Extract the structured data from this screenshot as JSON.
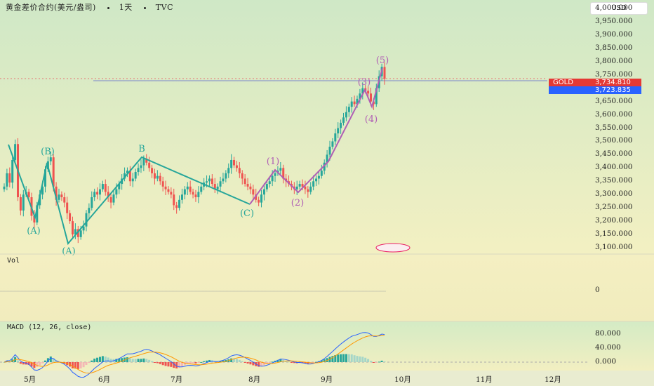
{
  "header": {
    "instrument": "黄金差价合约(美元/盎司)",
    "interval": "1天",
    "source": "TVC",
    "currency_button": "USD"
  },
  "price_tags": {
    "symbol": "GOLD",
    "last_price": "3,734.810",
    "blue_price": "3,723.835"
  },
  "colors": {
    "up": "#26a69a",
    "down": "#ef5350",
    "abc_wave": "#26a69a",
    "impulse_wave": "#b05fb5",
    "macd_line": "#2962ff",
    "signal_line": "#ff9800"
  },
  "y_axis_labels": [
    "4,000.000",
    "3,950.000",
    "3,900.000",
    "3,850.000",
    "3,800.000",
    "3,750.000",
    "3,650.000",
    "3,600.000",
    "3,550.000",
    "3,500.000",
    "3,450.000",
    "3,400.000",
    "3,350.000",
    "3,300.000",
    "3,250.000",
    "3,200.000",
    "3,150.000",
    "3,100.000"
  ],
  "volume_panel": {
    "title": "Vol",
    "zero_label": "0"
  },
  "macd_panel": {
    "title": "MACD (12, 26, close)",
    "labels": [
      "80.000",
      "40.000",
      "0.000"
    ]
  },
  "x_axis_labels": [
    "5月",
    "6月",
    "7月",
    "8月",
    "9月",
    "10月",
    "11月",
    "12月"
  ],
  "chart_data": {
    "type": "candlestick",
    "title": "黄金差价合约(美元/盎司)",
    "interval": "1天",
    "ylim": [
      3100,
      4000
    ],
    "wave_labels_abc": [
      {
        "label": "(A)",
        "price": 3215
      },
      {
        "label": "(B)",
        "price": 3438
      },
      {
        "label": "(A)",
        "price": 3120
      },
      {
        "label": "B",
        "price": 3450
      },
      {
        "label": "(C)",
        "price": 3270
      }
    ],
    "wave_labels_impulse": [
      {
        "label": "(1)",
        "price": 3405
      },
      {
        "label": "(2)",
        "price": 3310
      },
      {
        "label": "(3)",
        "price": 3700
      },
      {
        "label": "(4)",
        "price": 3630
      },
      {
        "label": "(5)",
        "price": 3790
      }
    ],
    "close_series": [
      3330,
      3380,
      3345,
      3430,
      3490,
      3290,
      3240,
      3300,
      3310,
      3290,
      3220,
      3195,
      3260,
      3300,
      3330,
      3395,
      3425,
      3440,
      3330,
      3280,
      3300,
      3290,
      3270,
      3230,
      3200,
      3150,
      3170,
      3140,
      3165,
      3180,
      3230,
      3250,
      3290,
      3310,
      3300,
      3320,
      3340,
      3310,
      3290,
      3270,
      3300,
      3320,
      3340,
      3360,
      3380,
      3390,
      3350,
      3360,
      3385,
      3400,
      3410,
      3435,
      3420,
      3400,
      3380,
      3360,
      3370,
      3350,
      3330,
      3320,
      3310,
      3300,
      3260,
      3250,
      3280,
      3300,
      3320,
      3330,
      3310,
      3300,
      3290,
      3310,
      3330,
      3345,
      3350,
      3360,
      3340,
      3320,
      3330,
      3350,
      3360,
      3380,
      3400,
      3430,
      3410,
      3400,
      3380,
      3360,
      3340,
      3330,
      3320,
      3300,
      3280,
      3270,
      3300,
      3320,
      3340,
      3350,
      3370,
      3380,
      3390,
      3400,
      3360,
      3350,
      3340,
      3330,
      3320,
      3330,
      3340,
      3330,
      3320,
      3310,
      3330,
      3350,
      3360,
      3370,
      3390,
      3420,
      3450,
      3480,
      3500,
      3530,
      3550,
      3570,
      3590,
      3610,
      3630,
      3650,
      3640,
      3660,
      3680,
      3700,
      3690,
      3680,
      3650,
      3640,
      3700,
      3745,
      3780,
      3735
    ],
    "macd": {
      "min": -20,
      "max": 100,
      "visible_labels": [
        80,
        40,
        0
      ]
    },
    "volume": "no bars visible"
  }
}
